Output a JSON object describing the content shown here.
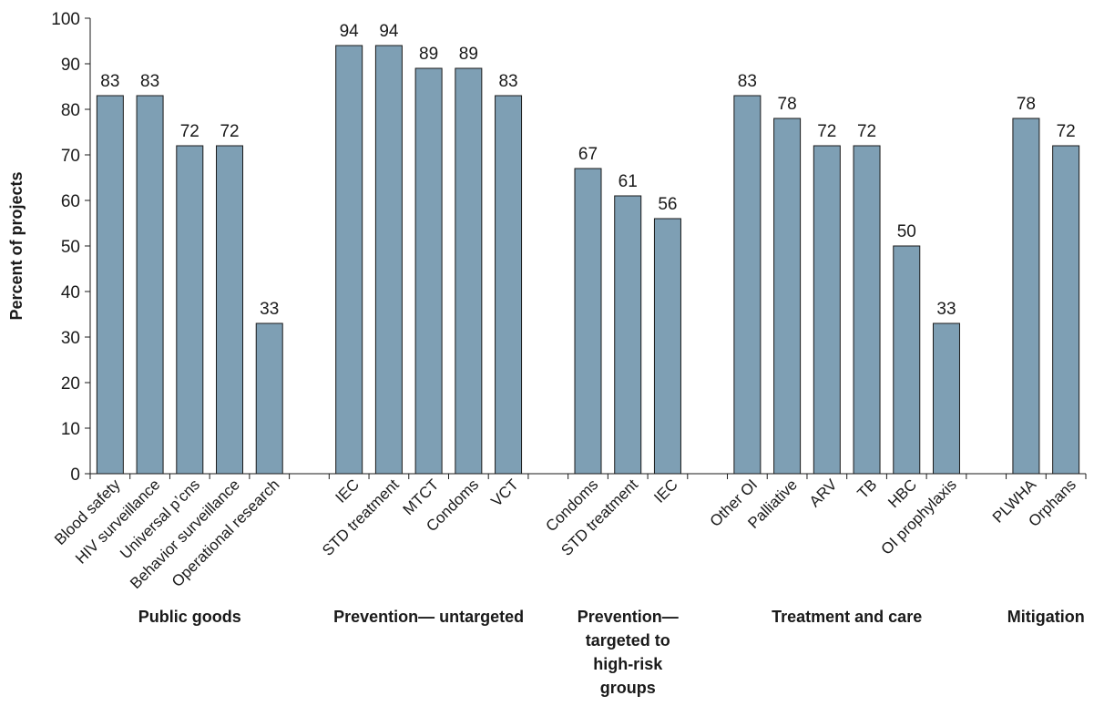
{
  "chart_data": {
    "type": "bar",
    "title": "",
    "xlabel": "",
    "ylabel": "Percent of projects",
    "ylim": [
      0,
      100
    ],
    "yticks": [
      0,
      10,
      20,
      30,
      40,
      50,
      60,
      70,
      80,
      90,
      100
    ],
    "grid": false,
    "bar_color": "#7e9fb4",
    "bar_edge_color": "#1a1a1a",
    "groups": [
      {
        "name": "Public goods",
        "categories": [
          "Blood safety",
          "HIV surveillance",
          "Universal p’cns",
          "Behavior surveillance",
          "Operational research"
        ],
        "values": [
          83,
          83,
          72,
          72,
          33
        ]
      },
      {
        "name": "Prevention— untargeted",
        "categories": [
          "IEC",
          "STD treatment",
          "MTCT",
          "Condoms",
          "VCT"
        ],
        "values": [
          94,
          94,
          89,
          89,
          83
        ]
      },
      {
        "name": "Prevention— targeted to high-risk groups",
        "categories": [
          "Condoms",
          "STD treatment",
          "IEC"
        ],
        "values": [
          67,
          61,
          56
        ]
      },
      {
        "name": "Treatment and care",
        "categories": [
          "Other OI",
          "Palliative",
          "ARV",
          "TB",
          "HBC",
          "OI prophylaxis"
        ],
        "values": [
          83,
          78,
          72,
          72,
          50,
          33
        ]
      },
      {
        "name": "Mitigation",
        "categories": [
          "PLWHA",
          "Orphans"
        ],
        "values": [
          78,
          72
        ]
      }
    ]
  }
}
